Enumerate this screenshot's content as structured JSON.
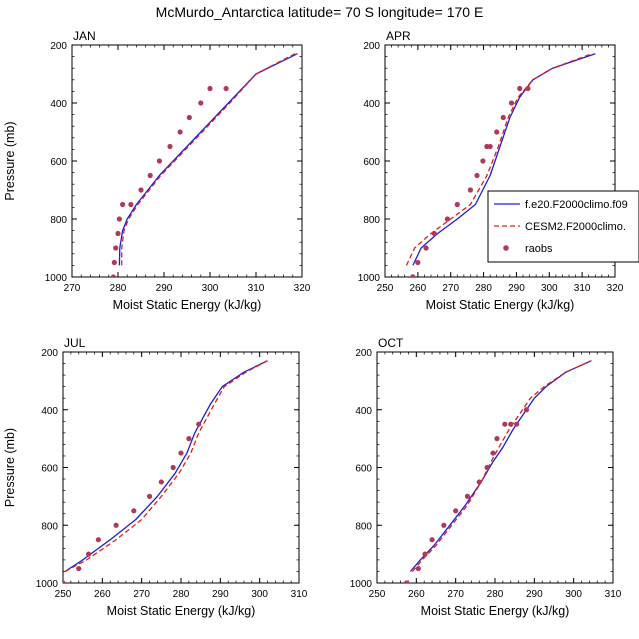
{
  "figure_title": "McMurdo_Antarctica  latitude= 70 S longitude= 170 E",
  "colors": {
    "series1": "#1f1fd6",
    "series2": "#e01c1c",
    "raobs": "#b0385a",
    "axis": "#000000"
  },
  "legend": {
    "entries": [
      {
        "label": "f.e20.F2000climo.f09",
        "style": "solid"
      },
      {
        "label": "CESM2.F2000climo.",
        "style": "dashed"
      },
      {
        "label": "raobs",
        "style": "marker"
      }
    ]
  },
  "chart_data": [
    {
      "type": "line",
      "panel": "JAN",
      "title": "JAN",
      "xlabel": "Moist Static Energy (kJ/kg)",
      "ylabel": "Pressure (mb)",
      "xlim": [
        270,
        320
      ],
      "ylim": [
        1000,
        200
      ],
      "xticks": [
        270,
        280,
        290,
        300,
        310,
        320
      ],
      "yticks": [
        200,
        400,
        600,
        800,
        1000
      ],
      "grid": false,
      "legend_position": "none",
      "series": [
        {
          "key": "s1",
          "style": "solid",
          "color": "#1f1fd6",
          "x": [
            280.3,
            280.4,
            281,
            282,
            284,
            286.5,
            289,
            292,
            295,
            298,
            301,
            304,
            310,
            319
          ],
          "y": [
            960,
            900,
            840,
            800,
            750,
            700,
            650,
            600,
            550,
            500,
            450,
            400,
            300,
            230
          ]
        },
        {
          "key": "s2",
          "style": "dashed",
          "color": "#e01c1c",
          "x": [
            280.8,
            280.8,
            281.3,
            282.3,
            284.3,
            286.8,
            289.3,
            292.3,
            295.3,
            298.3,
            301.3,
            304.3,
            310,
            318.5
          ],
          "y": [
            960,
            900,
            840,
            800,
            750,
            700,
            650,
            600,
            550,
            500,
            450,
            400,
            300,
            230
          ]
        },
        {
          "key": "raobs",
          "style": "marker",
          "color": "#b0385a",
          "x": [
            279,
            279.2,
            279.5,
            280,
            280.3,
            281,
            282.8,
            285,
            287,
            289,
            291.3,
            293.5,
            295.5,
            298,
            300,
            303.5
          ],
          "y": [
            1000,
            950,
            900,
            850,
            800,
            750,
            750,
            700,
            650,
            600,
            550,
            500,
            450,
            400,
            350,
            350
          ]
        }
      ]
    },
    {
      "type": "line",
      "panel": "APR",
      "title": "APR",
      "xlabel": "Moist Static Energy (kJ/kg)",
      "ylabel": "",
      "xlim": [
        250,
        320
      ],
      "ylim": [
        1000,
        200
      ],
      "xticks": [
        250,
        260,
        270,
        280,
        290,
        300,
        310,
        320
      ],
      "yticks": [
        200,
        400,
        600,
        800,
        1000
      ],
      "grid": false,
      "legend_position": "right",
      "series": [
        {
          "key": "s1",
          "style": "solid",
          "color": "#1f1fd6",
          "x": [
            258.5,
            261,
            266,
            272,
            277.5,
            282,
            285,
            288,
            291,
            295,
            301,
            314
          ],
          "y": [
            960,
            900,
            850,
            800,
            750,
            650,
            550,
            450,
            380,
            320,
            280,
            230
          ]
        },
        {
          "key": "s2",
          "style": "dashed",
          "color": "#e01c1c",
          "x": [
            256.5,
            259,
            264,
            270,
            276,
            281,
            284.5,
            287.5,
            290.5,
            295,
            301,
            313
          ],
          "y": [
            960,
            900,
            850,
            800,
            750,
            650,
            550,
            450,
            380,
            320,
            280,
            230
          ]
        },
        {
          "key": "raobs",
          "style": "marker",
          "color": "#b0385a",
          "x": [
            258.5,
            260,
            262.5,
            265,
            269,
            272,
            276,
            278,
            279.8,
            281,
            282,
            284,
            286,
            288.5,
            291,
            293.5
          ],
          "y": [
            1000,
            950,
            900,
            850,
            800,
            750,
            700,
            650,
            600,
            550,
            550,
            500,
            450,
            400,
            350,
            350
          ]
        }
      ]
    },
    {
      "type": "line",
      "panel": "JUL",
      "title": "JUL",
      "xlabel": "Moist Static Energy (kJ/kg)",
      "ylabel": "Pressure (mb)",
      "xlim": [
        250,
        310
      ],
      "ylim": [
        1000,
        200
      ],
      "xticks": [
        250,
        260,
        270,
        280,
        290,
        300,
        310
      ],
      "yticks": [
        200,
        400,
        600,
        800,
        1000
      ],
      "grid": false,
      "legend_position": "none",
      "series": [
        {
          "key": "s1",
          "style": "solid",
          "color": "#1f1fd6",
          "x": [
            250.5,
            255,
            262,
            268.5,
            274,
            278.5,
            281.5,
            283.5,
            285.5,
            287.5,
            290.5,
            296,
            302
          ],
          "y": [
            960,
            920,
            850,
            780,
            700,
            620,
            550,
            480,
            430,
            380,
            320,
            270,
            230
          ]
        },
        {
          "key": "s2",
          "style": "dashed",
          "color": "#e01c1c",
          "x": [
            250.5,
            256,
            263.5,
            270,
            275,
            279.5,
            282.5,
            284.5,
            286.5,
            288.5,
            291,
            296.5,
            302
          ],
          "y": [
            960,
            920,
            850,
            780,
            700,
            620,
            550,
            480,
            430,
            380,
            320,
            270,
            230
          ]
        },
        {
          "key": "raobs",
          "style": "marker",
          "color": "#b0385a",
          "x": [
            250,
            254,
            256.5,
            259,
            263.5,
            268,
            272,
            275,
            278,
            280,
            282,
            284.5
          ],
          "y": [
            1000,
            950,
            900,
            850,
            800,
            750,
            700,
            650,
            600,
            550,
            500,
            450
          ]
        }
      ]
    },
    {
      "type": "line",
      "panel": "OCT",
      "title": "OCT",
      "xlabel": "Moist Static Energy (kJ/kg)",
      "ylabel": "",
      "xlim": [
        250,
        310
      ],
      "ylim": [
        1000,
        200
      ],
      "xticks": [
        250,
        260,
        270,
        280,
        290,
        300,
        310
      ],
      "yticks": [
        200,
        400,
        600,
        800,
        1000
      ],
      "grid": false,
      "legend_position": "none",
      "series": [
        {
          "key": "s1",
          "style": "solid",
          "color": "#1f1fd6",
          "x": [
            258.5,
            261,
            264.5,
            268.5,
            272.5,
            276.5,
            279.5,
            282,
            284.5,
            287,
            290,
            293,
            298,
            304.5
          ],
          "y": [
            960,
            920,
            870,
            800,
            730,
            650,
            580,
            530,
            470,
            420,
            360,
            320,
            270,
            230
          ]
        },
        {
          "key": "s2",
          "style": "dashed",
          "color": "#e01c1c",
          "x": [
            259,
            261.5,
            265,
            269,
            273,
            276.5,
            279,
            281,
            283.5,
            286,
            289,
            292.5,
            298,
            304.5
          ],
          "y": [
            960,
            920,
            870,
            800,
            730,
            650,
            580,
            530,
            470,
            420,
            360,
            320,
            270,
            230
          ]
        },
        {
          "key": "raobs",
          "style": "marker",
          "color": "#b0385a",
          "x": [
            257.5,
            260.5,
            262.2,
            264,
            267,
            270,
            273,
            276,
            278,
            279.5,
            280.5,
            282.5,
            284,
            285.5,
            288
          ],
          "y": [
            1000,
            950,
            900,
            850,
            800,
            750,
            700,
            650,
            600,
            550,
            500,
            450,
            450,
            450,
            400
          ]
        }
      ]
    }
  ]
}
